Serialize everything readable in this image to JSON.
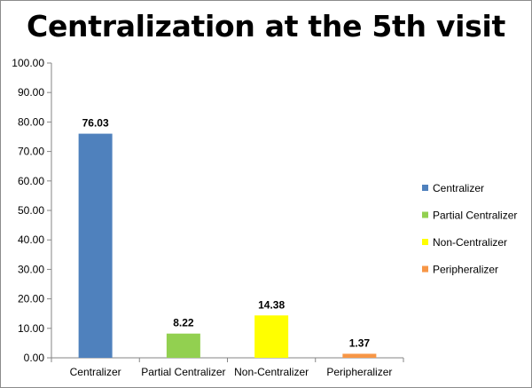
{
  "chart_data": {
    "type": "bar",
    "title": "Centralization at the 5th visit",
    "categories": [
      "Centralizer",
      "Partial Centralizer",
      "Non-Centralizer",
      "Peripheralizer"
    ],
    "values": [
      76.03,
      8.22,
      14.38,
      1.37
    ],
    "value_labels": [
      "76.03",
      "8.22",
      "14.38",
      "1.37"
    ],
    "colors": [
      "#4f81bd",
      "#92d050",
      "#ffff00",
      "#f79646"
    ],
    "ylim": [
      0,
      100
    ],
    "yticks": [
      "0.00",
      "10.00",
      "20.00",
      "30.00",
      "40.00",
      "50.00",
      "60.00",
      "70.00",
      "80.00",
      "90.00",
      "100.00"
    ],
    "legend": {
      "placement": "right",
      "entries": [
        "Centralizer",
        "Partial Centralizer",
        "Non-Centralizer",
        "Peripheralizer"
      ]
    },
    "grid": false
  }
}
